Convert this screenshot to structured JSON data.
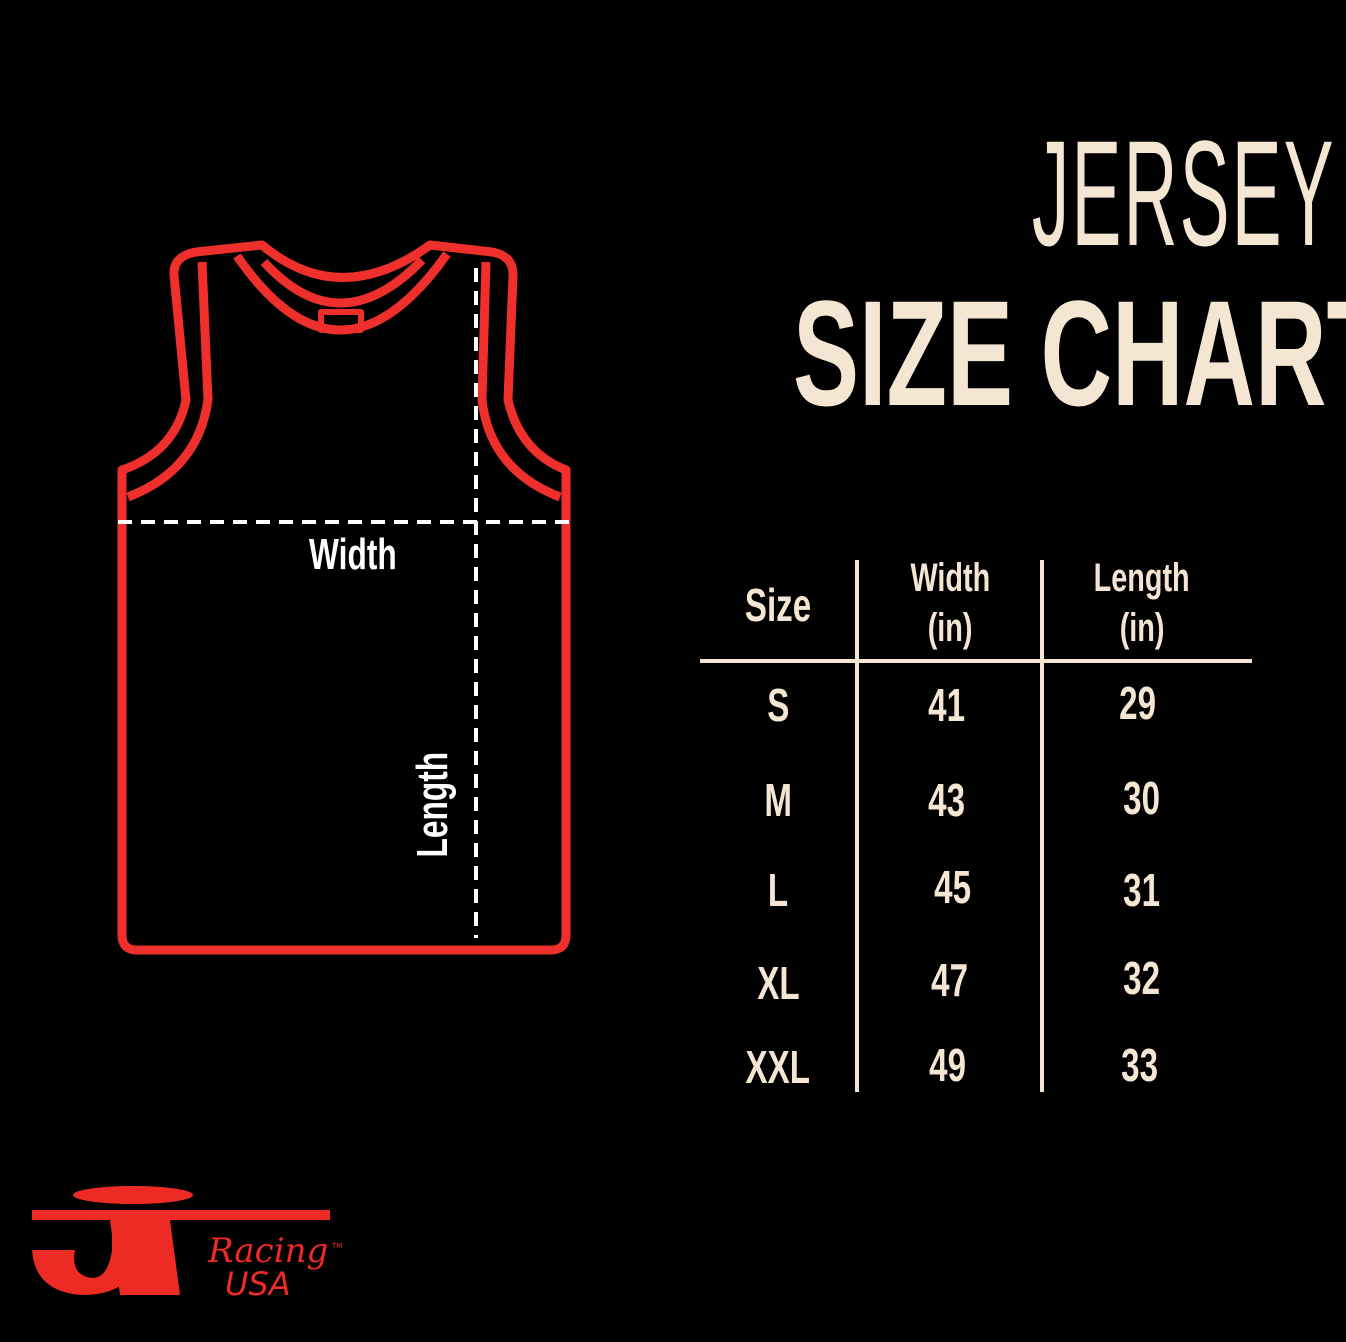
{
  "title": {
    "line1": "JERSEY",
    "line2": "SIZE CHART"
  },
  "diagram": {
    "width_label": "Width",
    "length_label": "Length"
  },
  "colors": {
    "outline": "#ee2f2b",
    "text": "#f4e6d2",
    "background": "#000000",
    "dashes": "#ffffff"
  },
  "table": {
    "headers": [
      {
        "line1": "Size",
        "line2": ""
      },
      {
        "line1": "Width",
        "line2": "(in)"
      },
      {
        "line1": "Length",
        "line2": "(in)"
      }
    ],
    "rows": [
      {
        "size": "S",
        "width": "41",
        "length": "29"
      },
      {
        "size": "M",
        "width": "43",
        "length": "30"
      },
      {
        "size": "L",
        "width": "45",
        "length": "31"
      },
      {
        "size": "XL",
        "width": "47",
        "length": "32"
      },
      {
        "size": "XXL",
        "width": "49",
        "length": "33"
      }
    ]
  },
  "logo": {
    "letters": "JT",
    "script": "Racing",
    "country": "USA",
    "mark": "TM"
  }
}
